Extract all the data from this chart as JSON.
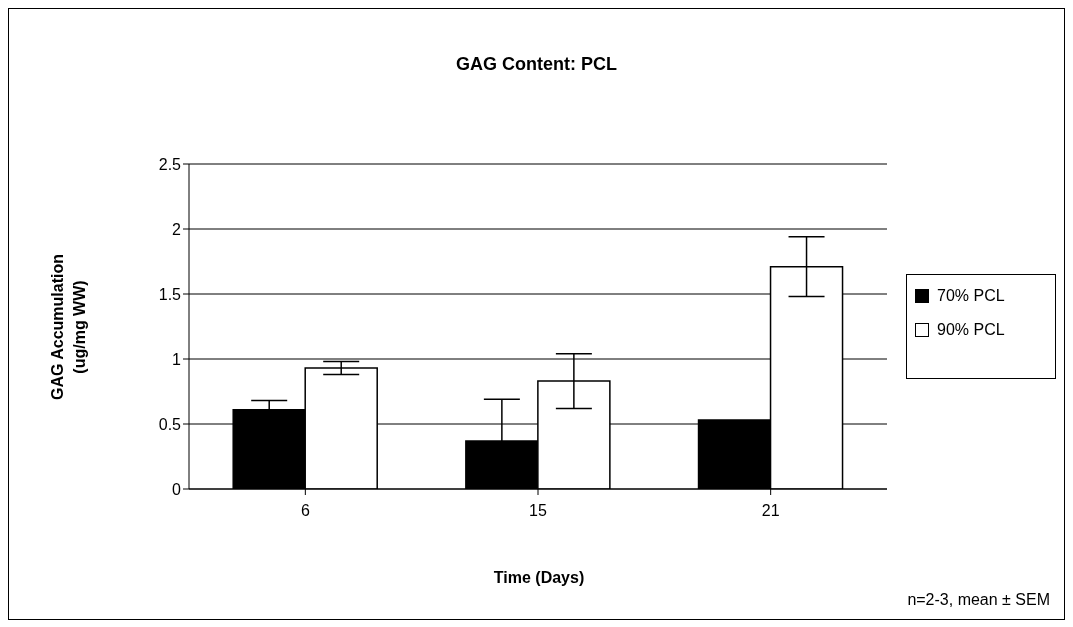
{
  "chart_data": {
    "type": "bar",
    "title": "GAG Content: PCL",
    "xlabel": "Time (Days)",
    "ylabel": "GAG Accumulation\n(ug/mg WW)",
    "categories": [
      "6",
      "15",
      "21"
    ],
    "series": [
      {
        "name": "70% PCL",
        "color": "#000000",
        "values": [
          0.61,
          0.37,
          0.53
        ],
        "errors": [
          0.07,
          0.32,
          null
        ]
      },
      {
        "name": "90% PCL",
        "color": "#ffffff",
        "values": [
          0.93,
          0.83,
          1.71
        ],
        "errors": [
          0.05,
          0.21,
          0.23
        ]
      }
    ],
    "ylim": [
      0,
      2.5
    ],
    "yticks": [
      0,
      0.5,
      1,
      1.5,
      2,
      2.5
    ],
    "grid": "y",
    "legend": "right",
    "annotations": [
      "n=2-3, mean ± SEM"
    ]
  }
}
